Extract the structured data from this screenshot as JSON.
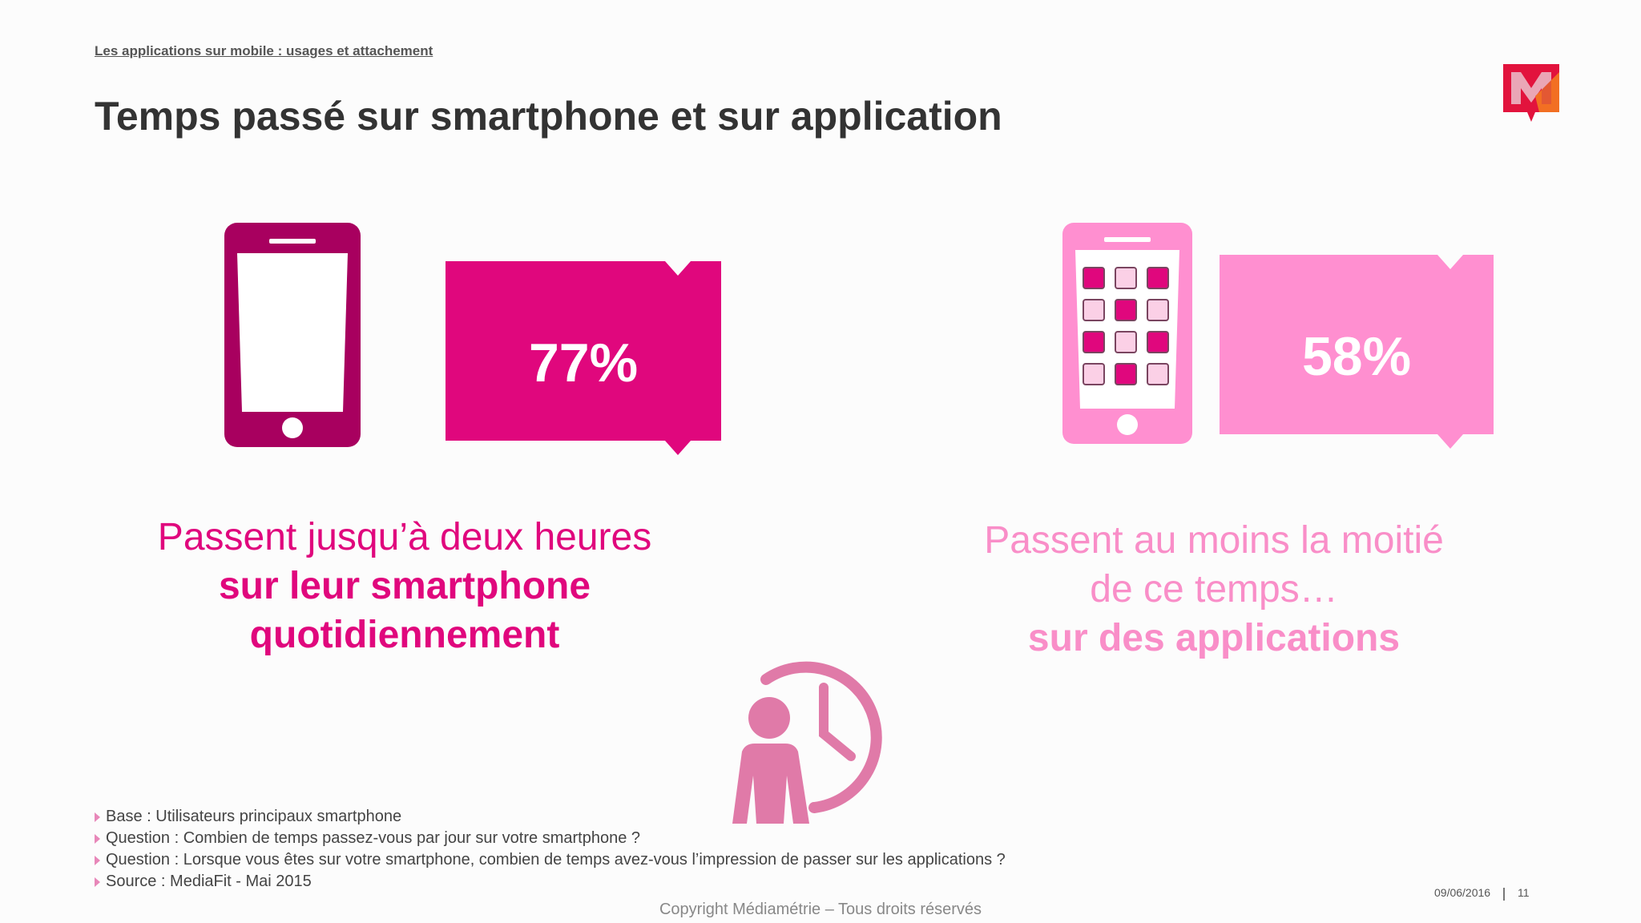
{
  "header": {
    "section_link": "Les applications sur mobile : usages et attachement",
    "title": "Temps passé sur smartphone et sur application"
  },
  "stats": [
    {
      "value": "77%",
      "fraction": 0.77,
      "color": "#e0077d",
      "caption_lines": [
        "Passent jusqu’à deux heures"
      ],
      "caption_bold_lines": [
        "sur leur smartphone",
        "quotidiennement"
      ]
    },
    {
      "value": "58%",
      "fraction": 0.58,
      "color": "#ff8fd0",
      "caption_lines": [
        "Passent au moins la moitié",
        "de ce temps…"
      ],
      "caption_bold_lines": [
        "sur des applications"
      ]
    }
  ],
  "icons": [
    "smartphone-icon",
    "smartphone-apps-icon",
    "person-clock-icon",
    "mediametrie-logo"
  ],
  "notes": [
    "Base : Utilisateurs principaux smartphone",
    "Question : Combien de temps passez-vous par jour sur votre smartphone ?",
    "Question : Lorsque vous êtes sur votre smartphone, combien de temps avez-vous l’impression de passer sur les applications ?",
    "Source : MediaFit - Mai 2015"
  ],
  "footer": {
    "copyright": "Copyright Médiamétrie – Tous droits réservés",
    "date": "09/06/2016",
    "page": "11"
  },
  "colors": {
    "accent_dark": "#a8005f",
    "accent": "#e0077d",
    "accent_light": "#ff8fd0",
    "person_icon": "#e07aa8"
  }
}
